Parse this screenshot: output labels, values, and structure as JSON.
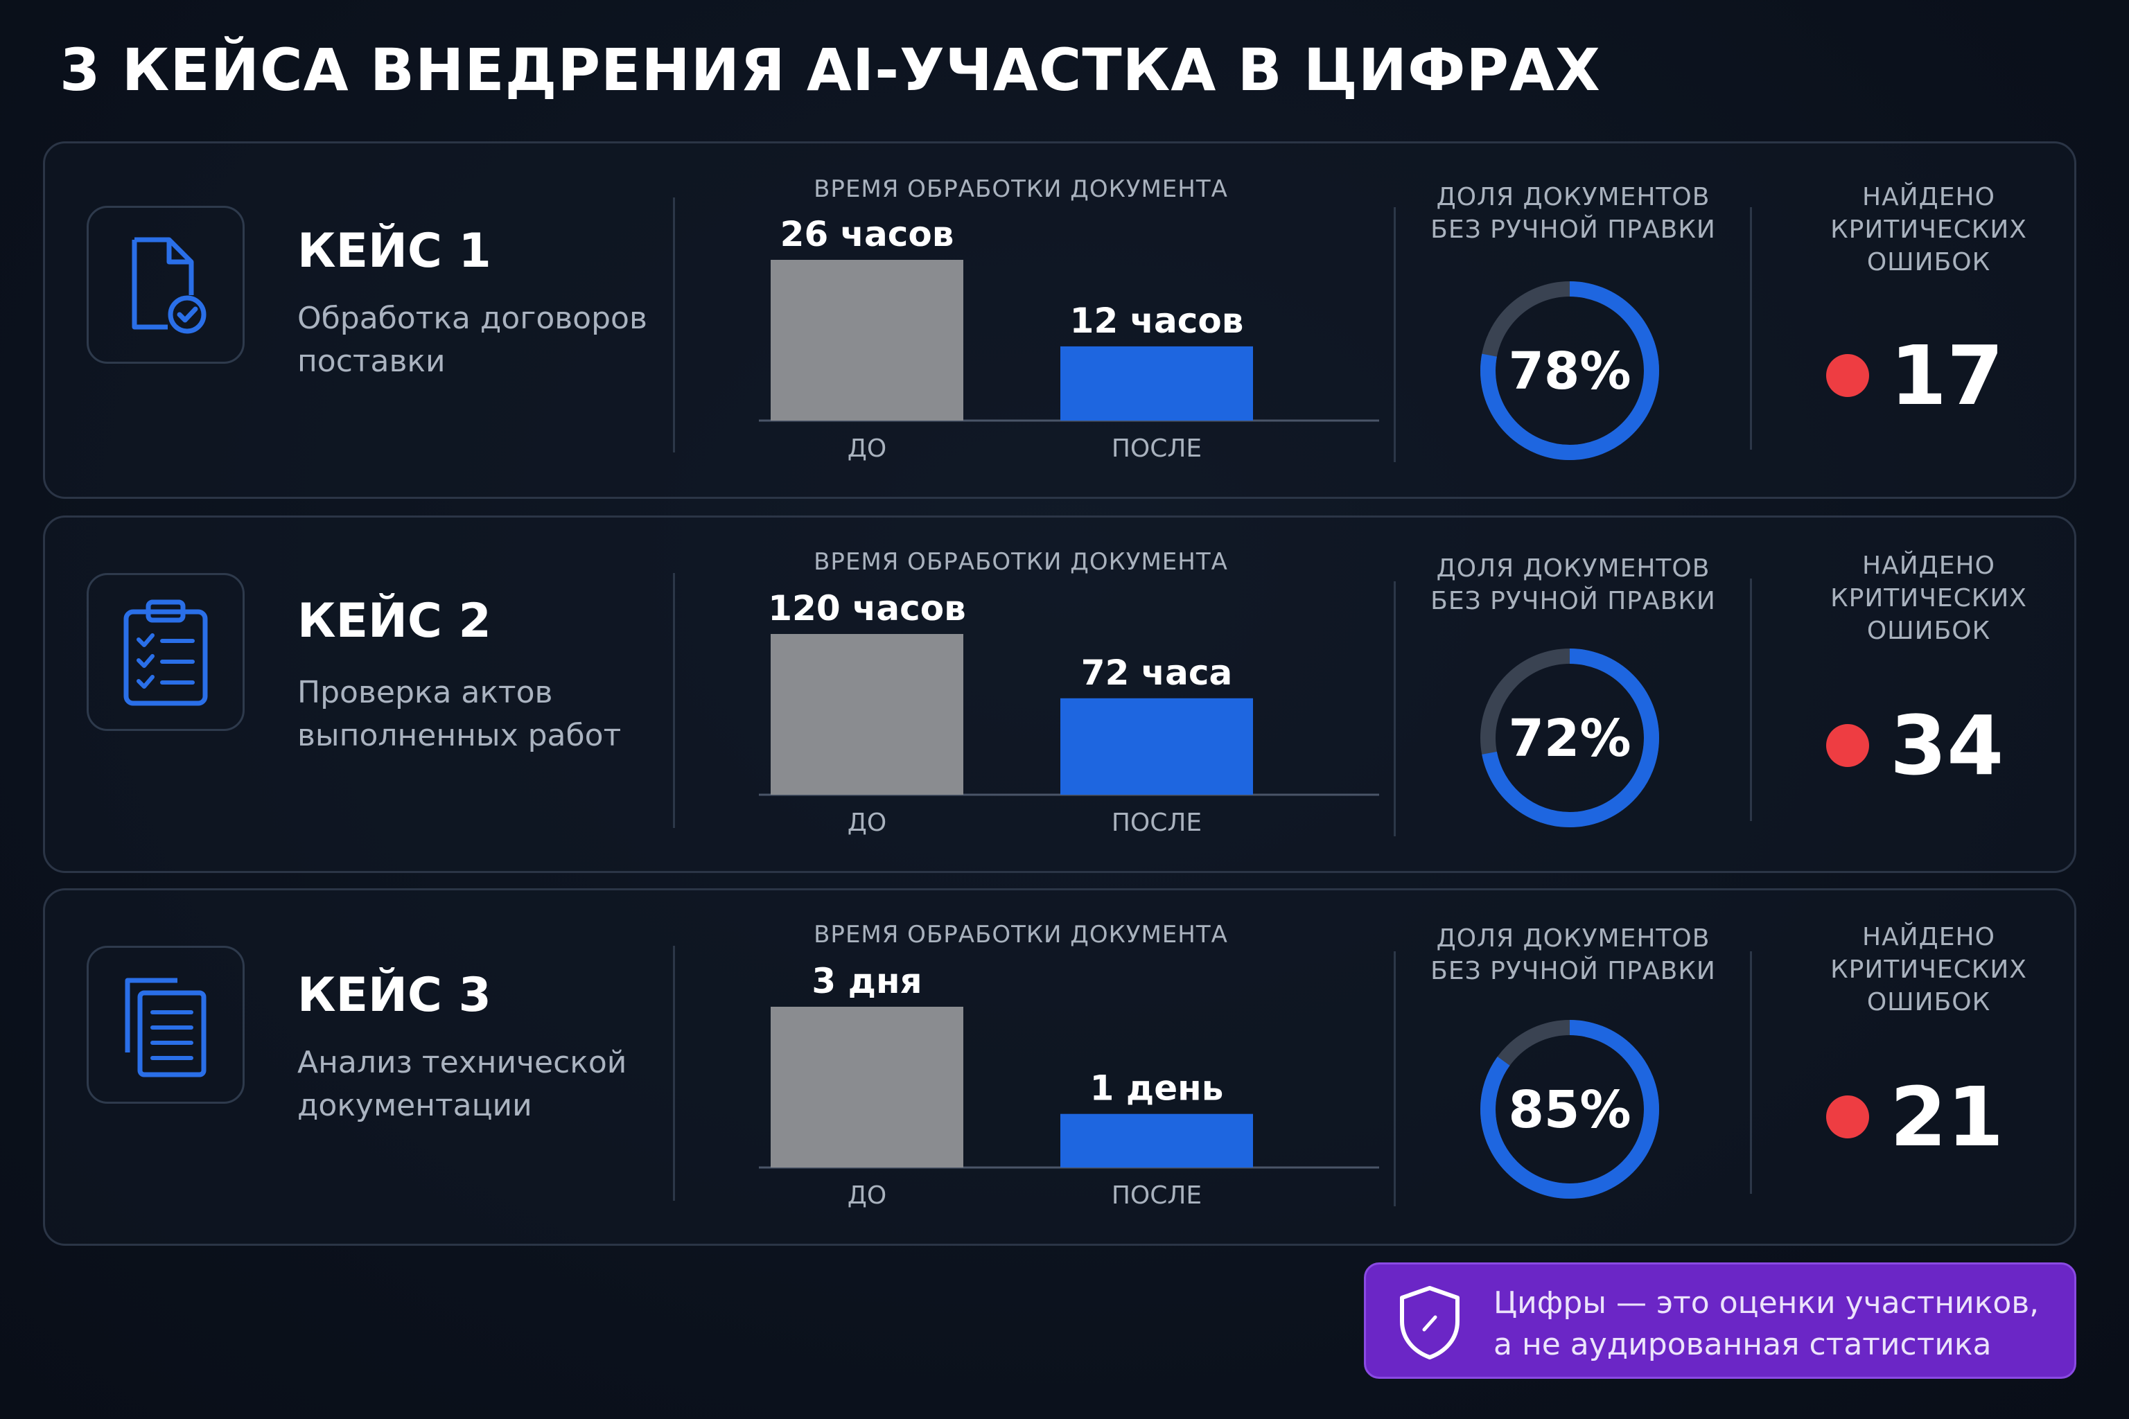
{
  "title": "3 КЕЙСА ВНЕДРЕНИЯ AI-УЧАСТКА В ЦИФРАХ",
  "labels": {
    "bar_chart_title": "ВРЕМЯ ОБРАБОТКИ ДОКУМЕНТА",
    "donut_title": "ДОЛЯ ДОКУМЕНТОВ БЕЗ РУЧНОЙ ПРАВКИ",
    "errors_title": "НАЙДЕНО КРИТИЧЕСКИХ ОШИБОК"
  },
  "cases": [
    {
      "title": "КЕЙС 1",
      "description": "Обработка договоров поставки",
      "icon": "document-check-icon",
      "errors": "17"
    },
    {
      "title": "КЕЙС 2",
      "description": "Проверка актов выполненных работ",
      "icon": "clipboard-checklist-icon",
      "errors": "34"
    },
    {
      "title": "КЕЙС 3",
      "description": "Анализ технической документации",
      "icon": "documents-stack-icon",
      "errors": "21"
    }
  ],
  "note": "Цифры — это оценки участников, а не аудированная статистика",
  "colors": {
    "background": "#0c131f",
    "before_bar": "#8a8c90",
    "after_bar": "#1e66e0",
    "donut_track": "#3a4352",
    "donut_fill": "#1e66e0",
    "error_dot": "#ee3d42",
    "note_bg": "#6b26c6"
  },
  "chart_data": [
    {
      "type": "bar",
      "title": "ВРЕМЯ ОБРАБОТКИ ДОКУМЕНТА",
      "categories": [
        "ДО",
        "ПОСЛЕ"
      ],
      "values": [
        26,
        12
      ],
      "unit": "hours",
      "data_labels": [
        "26 часов",
        "12 часов"
      ]
    },
    {
      "type": "pie",
      "title": "ДОЛЯ ДОКУМЕНТОВ БЕЗ РУЧНОЙ ПРАВКИ",
      "value": 78,
      "label": "78%"
    },
    {
      "type": "bar",
      "title": "ВРЕМЯ ОБРАБОТКИ ДОКУМЕНТА",
      "categories": [
        "ДО",
        "ПОСЛЕ"
      ],
      "values": [
        120,
        72
      ],
      "unit": "hours",
      "data_labels": [
        "120 часов",
        "72 часа"
      ]
    },
    {
      "type": "pie",
      "title": "ДОЛЯ ДОКУМЕНТОВ БЕЗ РУЧНОЙ ПРАВКИ",
      "value": 72,
      "label": "72%"
    },
    {
      "type": "bar",
      "title": "ВРЕМЯ ОБРАБОТКИ ДОКУМЕНТА",
      "categories": [
        "ДО",
        "ПОСЛЕ"
      ],
      "values": [
        3,
        1
      ],
      "unit": "days",
      "data_labels": [
        "3 дня",
        "1 день"
      ]
    },
    {
      "type": "pie",
      "title": "ДОЛЯ ДОКУМЕНТОВ БЕЗ РУЧНОЙ ПРАВКИ",
      "value": 85,
      "label": "85%"
    }
  ]
}
